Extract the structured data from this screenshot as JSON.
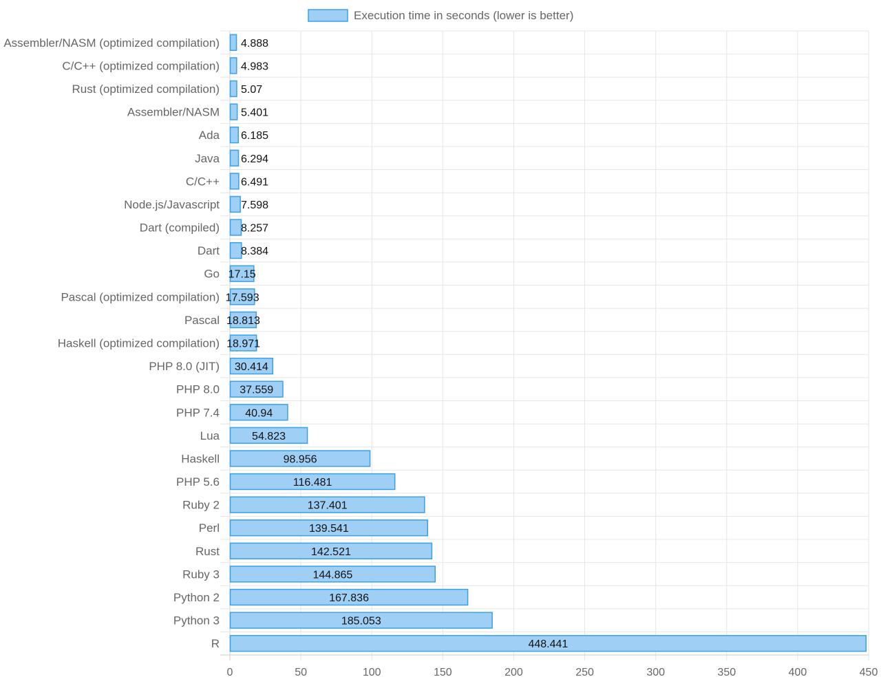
{
  "chart_data": {
    "type": "bar",
    "orientation": "horizontal",
    "categories": [
      "Assembler/NASM (optimized compilation)",
      "C/C++ (optimized compilation)",
      "Rust (optimized compilation)",
      "Assembler/NASM",
      "Ada",
      "Java",
      "C/C++",
      "Node.js/Javascript",
      "Dart (compiled)",
      "Dart",
      "Go",
      "Pascal (optimized compilation)",
      "Pascal",
      "Haskell (optimized compilation)",
      "PHP 8.0 (JIT)",
      "PHP 8.0",
      "PHP 7.4",
      "Lua",
      "Haskell",
      "PHP 5.6",
      "Ruby 2",
      "Perl",
      "Rust",
      "Ruby 3",
      "Python 2",
      "Python 3",
      "R"
    ],
    "series": [
      {
        "name": "Execution time in seconds (lower is better)",
        "values": [
          4.888,
          4.983,
          5.07,
          5.401,
          6.185,
          6.294,
          6.491,
          7.598,
          8.257,
          8.384,
          17.15,
          17.593,
          18.813,
          18.971,
          30.414,
          37.559,
          40.94,
          54.823,
          98.956,
          116.481,
          137.401,
          139.541,
          142.521,
          144.865,
          167.836,
          185.053,
          448.441
        ],
        "labels": [
          "4.888",
          "4.983",
          "5.07",
          "5.401",
          "6.185",
          "6.294",
          "6.491",
          "7.598",
          "8.257",
          "8.384",
          "17.15",
          "17.593",
          "18.813",
          "18.971",
          "30.414",
          "37.559",
          "40.94",
          "54.823",
          "98.956",
          "116.481",
          "137.401",
          "139.541",
          "142.521",
          "144.865",
          "167.836",
          "185.053",
          "448.441"
        ]
      }
    ],
    "xlim": [
      0,
      450
    ],
    "xticks": [
      "0",
      "50",
      "100",
      "150",
      "200",
      "250",
      "300",
      "350",
      "400",
      "450"
    ],
    "grid": true,
    "legend_position": "top",
    "colors": {
      "bar_fill": "#9fcff5",
      "bar_stroke": "#36a2eb",
      "grid": "#e5e5e5",
      "axis": "#cccccc",
      "label_text": "#666666",
      "data_label_text": "#111111"
    }
  }
}
